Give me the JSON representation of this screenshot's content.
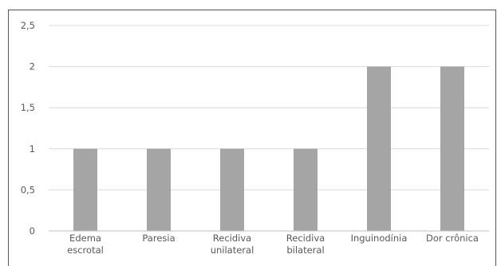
{
  "chart_data": {
    "type": "bar",
    "categories": [
      [
        "Edema",
        "escrotal"
      ],
      [
        "Paresia"
      ],
      [
        "Recidiva",
        "unilateral"
      ],
      [
        "Recidiva",
        "bilateral"
      ],
      [
        "Inguinodínia"
      ],
      [
        "Dor crônica"
      ]
    ],
    "values": [
      1,
      1,
      1,
      1,
      2,
      2
    ],
    "y_ticks": [
      "0",
      "0,5",
      "1",
      "1,5",
      "2",
      "2,5"
    ],
    "ylim": [
      0,
      2.5
    ],
    "grid": true,
    "colors": {
      "bar": "#a5a5a5",
      "grid": "#d9d9d9",
      "axis": "#bfbfbf"
    }
  }
}
